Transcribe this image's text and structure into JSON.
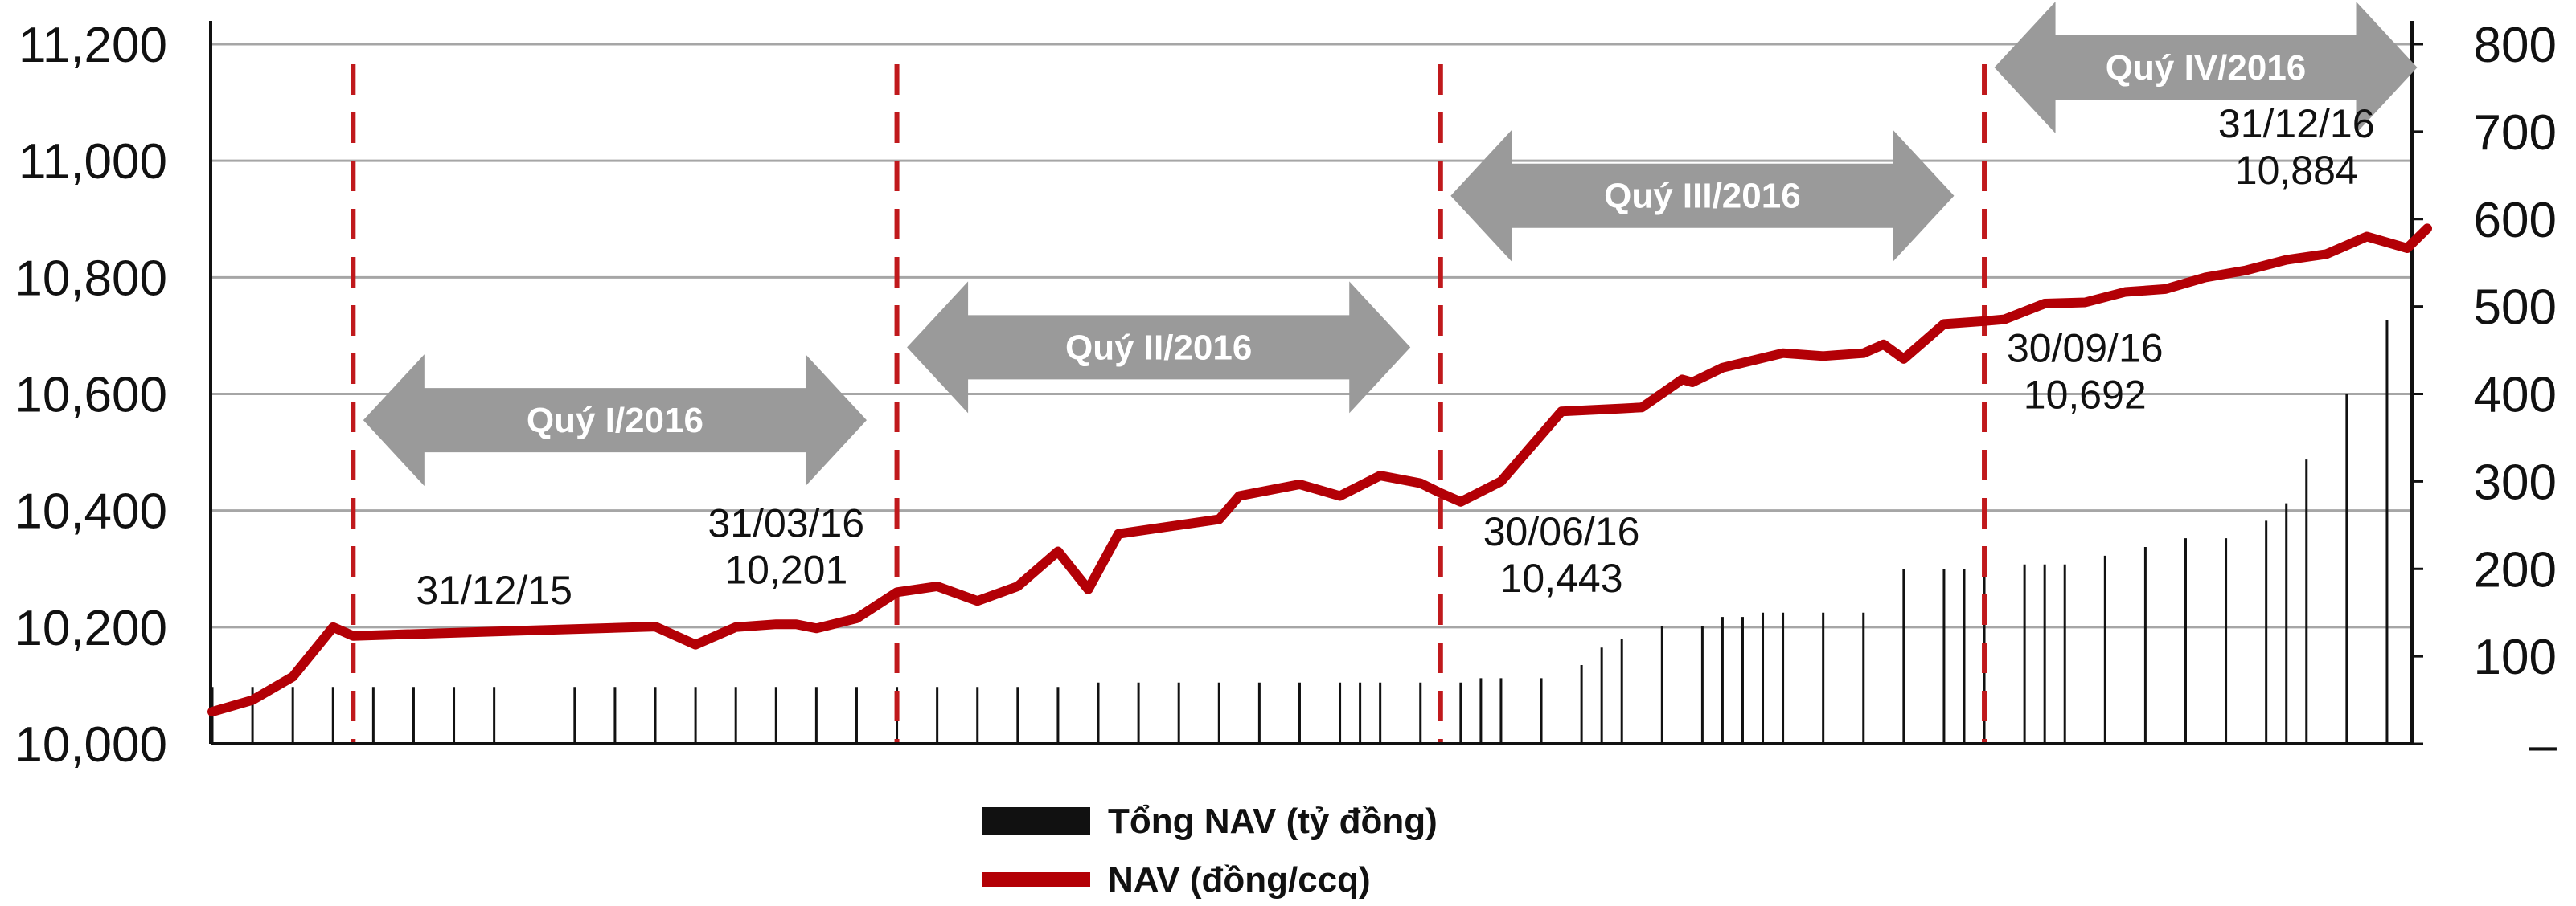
{
  "chart_data": {
    "type": "bar+line",
    "x_range": [
      0,
      109
    ],
    "left_axis": {
      "ylim": [
        10000,
        11200
      ],
      "ticks": [
        "10,000",
        "10,200",
        "10,400",
        "10,600",
        "10,800",
        "11,000",
        "11,200"
      ]
    },
    "right_axis": {
      "ylim": [
        0,
        800
      ],
      "ticks": [
        "–",
        "100",
        "200",
        "300",
        "400",
        "500",
        "600",
        "700",
        "800"
      ]
    },
    "bars": {
      "name": "Tổng NAV (tỷ đồng)",
      "color": "#111111",
      "x": [
        0,
        2,
        4,
        6,
        8,
        10,
        12,
        14,
        18,
        20,
        22,
        24,
        26,
        28,
        30,
        32,
        34,
        36,
        38,
        40,
        42,
        44,
        46,
        48,
        50,
        52,
        54,
        56,
        57,
        58,
        60,
        62,
        63,
        64,
        66,
        68,
        69,
        70,
        72,
        74,
        75,
        76,
        77,
        78,
        80,
        82,
        84,
        86,
        87,
        88,
        90,
        91,
        92,
        94,
        96,
        98,
        100,
        102,
        103,
        104,
        106,
        108
      ],
      "values": [
        65,
        65,
        65,
        65,
        65,
        65,
        65,
        65,
        65,
        65,
        65,
        65,
        65,
        65,
        65,
        65,
        65,
        65,
        65,
        65,
        65,
        70,
        70,
        70,
        70,
        70,
        70,
        70,
        70,
        70,
        70,
        70,
        75,
        75,
        75,
        90,
        110,
        120,
        135,
        135,
        145,
        145,
        150,
        150,
        150,
        150,
        200,
        200,
        200,
        205,
        205,
        205,
        205,
        215,
        225,
        235,
        235,
        255,
        275,
        325,
        400,
        485
      ]
    },
    "line": {
      "name": "NAV (đồng/ccq)",
      "color": "#b30006",
      "points": [
        [
          0,
          10055
        ],
        [
          2,
          10075
        ],
        [
          4,
          10115
        ],
        [
          6,
          10200
        ],
        [
          7,
          10185
        ],
        [
          22,
          10201
        ],
        [
          24,
          10170
        ],
        [
          26,
          10200
        ],
        [
          28,
          10205
        ],
        [
          29,
          10205
        ],
        [
          30,
          10198
        ],
        [
          32,
          10215
        ],
        [
          34,
          10260
        ],
        [
          36,
          10270
        ],
        [
          38,
          10245
        ],
        [
          40,
          10270
        ],
        [
          42,
          10330
        ],
        [
          43.5,
          10265
        ],
        [
          45,
          10360
        ],
        [
          50,
          10385
        ],
        [
          51,
          10425
        ],
        [
          54,
          10445
        ],
        [
          56,
          10425
        ],
        [
          58,
          10460
        ],
        [
          60,
          10447
        ],
        [
          61,
          10430
        ],
        [
          62,
          10415
        ],
        [
          64,
          10450
        ],
        [
          67,
          10570
        ],
        [
          70,
          10575
        ],
        [
          71,
          10577
        ],
        [
          73,
          10625
        ],
        [
          73.5,
          10620
        ],
        [
          75,
          10645
        ],
        [
          78,
          10670
        ],
        [
          80,
          10665
        ],
        [
          82,
          10670
        ],
        [
          83,
          10685
        ],
        [
          84,
          10660
        ],
        [
          86,
          10720
        ],
        [
          88,
          10725
        ],
        [
          89,
          10728
        ],
        [
          91,
          10755
        ],
        [
          93,
          10757
        ],
        [
          95,
          10775
        ],
        [
          97,
          10780
        ],
        [
          99,
          10800
        ],
        [
          101,
          10812
        ],
        [
          103,
          10830
        ],
        [
          105,
          10840
        ],
        [
          107,
          10870
        ],
        [
          109,
          10850
        ],
        [
          110,
          10884
        ]
      ]
    },
    "quarter_dividers_x": [
      7,
      34,
      61,
      88
    ],
    "quarters": [
      {
        "label": "Quý I/2016",
        "x1": 7.5,
        "x2": 32.5,
        "y": 10555
      },
      {
        "label": "Quý II/2016",
        "x1": 34.5,
        "x2": 59.5,
        "y": 10680
      },
      {
        "label": "Quý III/2016",
        "x1": 61.5,
        "x2": 86.5,
        "y": 10940
      },
      {
        "label": "Quý IV/2016",
        "x1": 88.5,
        "x2": 109.5,
        "y": 11160
      }
    ],
    "annotations": [
      {
        "lines": [
          "31/12/15"
        ],
        "x": 14,
        "y": 10240,
        "anchor": "middle"
      },
      {
        "lines": [
          "31/03/16",
          "10,201"
        ],
        "x": 28.5,
        "y": 10355,
        "anchor": "middle"
      },
      {
        "lines": [
          "30/06/16",
          "10,443"
        ],
        "x": 67,
        "y": 10340,
        "anchor": "middle"
      },
      {
        "lines": [
          "30/09/16",
          "10,692"
        ],
        "x": 93,
        "y": 10655,
        "anchor": "middle"
      },
      {
        "lines": [
          "31/12/16",
          "10,884"
        ],
        "x": 103.5,
        "y": 11040,
        "anchor": "middle"
      }
    ],
    "legend": {
      "position": "bottom-center"
    }
  }
}
